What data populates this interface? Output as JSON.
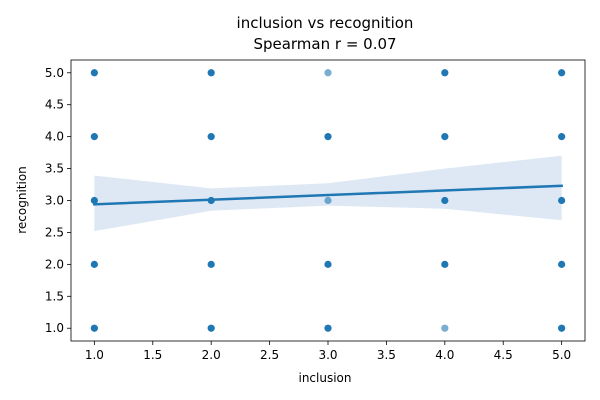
{
  "chart_data": {
    "type": "scatter",
    "title": "inclusion vs recognition",
    "subtitle": "Spearman r = 0.07",
    "xlabel": "inclusion",
    "ylabel": "recognition",
    "xlim": [
      0.8,
      5.2
    ],
    "ylim": [
      0.8,
      5.2
    ],
    "x_ticks": [
      1.0,
      1.5,
      2.0,
      2.5,
      3.0,
      3.5,
      4.0,
      4.5,
      5.0
    ],
    "x_tick_labels": [
      "1.0",
      "1.5",
      "2.0",
      "2.5",
      "3.0",
      "3.5",
      "4.0",
      "4.5",
      "5.0"
    ],
    "y_ticks": [
      1.0,
      1.5,
      2.0,
      2.5,
      3.0,
      3.5,
      4.0,
      4.5,
      5.0
    ],
    "y_tick_labels": [
      "1.0",
      "1.5",
      "2.0",
      "2.5",
      "3.0",
      "3.5",
      "4.0",
      "4.5",
      "5.0"
    ],
    "grid": false,
    "points": [
      {
        "x": 1,
        "y": 1,
        "opacity": 1.0
      },
      {
        "x": 1,
        "y": 2,
        "opacity": 1.0
      },
      {
        "x": 1,
        "y": 3,
        "opacity": 1.0
      },
      {
        "x": 1,
        "y": 4,
        "opacity": 1.0
      },
      {
        "x": 1,
        "y": 5,
        "opacity": 1.0
      },
      {
        "x": 2,
        "y": 1,
        "opacity": 1.0
      },
      {
        "x": 2,
        "y": 2,
        "opacity": 1.0
      },
      {
        "x": 2,
        "y": 3,
        "opacity": 1.0
      },
      {
        "x": 2,
        "y": 4,
        "opacity": 1.0
      },
      {
        "x": 2,
        "y": 5,
        "opacity": 1.0
      },
      {
        "x": 3,
        "y": 1,
        "opacity": 1.0
      },
      {
        "x": 3,
        "y": 2,
        "opacity": 1.0
      },
      {
        "x": 3,
        "y": 3,
        "opacity": 0.6
      },
      {
        "x": 3,
        "y": 4,
        "opacity": 1.0
      },
      {
        "x": 3,
        "y": 5,
        "opacity": 0.6
      },
      {
        "x": 4,
        "y": 1,
        "opacity": 0.6
      },
      {
        "x": 4,
        "y": 2,
        "opacity": 1.0
      },
      {
        "x": 4,
        "y": 3,
        "opacity": 1.0
      },
      {
        "x": 4,
        "y": 4,
        "opacity": 1.0
      },
      {
        "x": 4,
        "y": 5,
        "opacity": 1.0
      },
      {
        "x": 5,
        "y": 1,
        "opacity": 1.0
      },
      {
        "x": 5,
        "y": 2,
        "opacity": 1.0
      },
      {
        "x": 5,
        "y": 3,
        "opacity": 1.0
      },
      {
        "x": 5,
        "y": 4,
        "opacity": 1.0
      },
      {
        "x": 5,
        "y": 5,
        "opacity": 1.0
      }
    ],
    "regression": {
      "x": [
        1,
        5
      ],
      "y": [
        2.94,
        3.23
      ]
    },
    "confidence_band": {
      "x": [
        1,
        2,
        3,
        4,
        5
      ],
      "lower": [
        2.52,
        2.84,
        2.92,
        2.87,
        2.69
      ],
      "upper": [
        3.39,
        3.19,
        3.27,
        3.5,
        3.7
      ]
    },
    "colors": {
      "points": "#1f77b4",
      "line": "#1f77b4",
      "band": "#c6d9ec"
    }
  }
}
